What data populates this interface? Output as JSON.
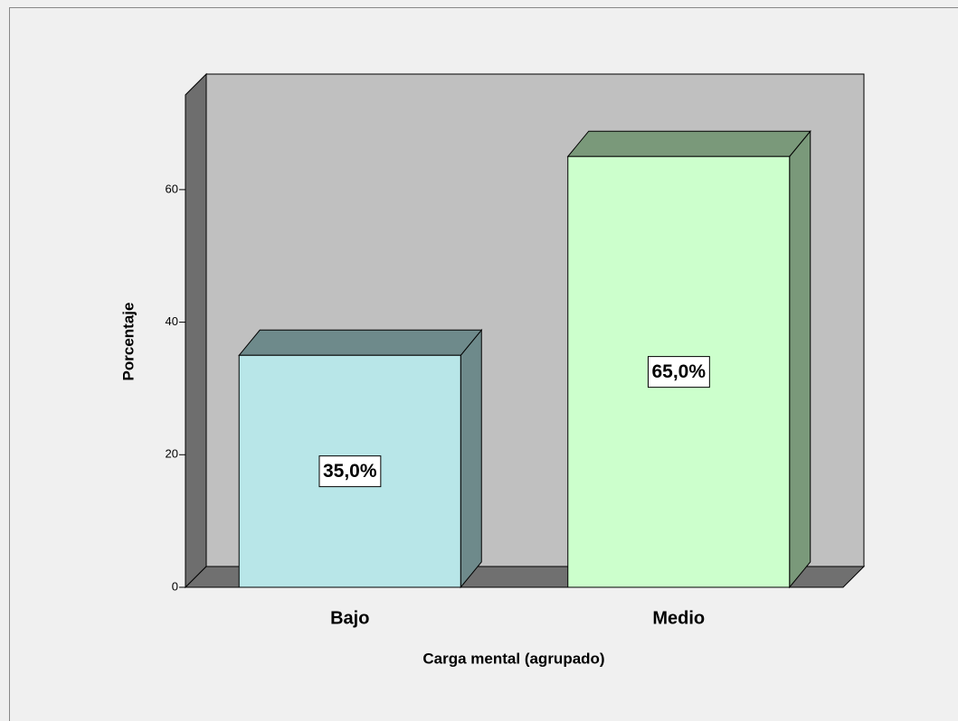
{
  "chart_data": {
    "type": "bar3d",
    "xlabel": "Carga mental (agrupado)",
    "ylabel": "Porcentaje",
    "categories": [
      "Bajo",
      "Medio"
    ],
    "values": [
      35,
      65
    ],
    "value_labels": [
      "35,0%",
      "65,0%"
    ],
    "colors": [
      "#b8e6e8",
      "#ccffcc"
    ],
    "ylim": [
      0,
      74.3
    ],
    "yticks": [
      0,
      20,
      40,
      60
    ]
  }
}
